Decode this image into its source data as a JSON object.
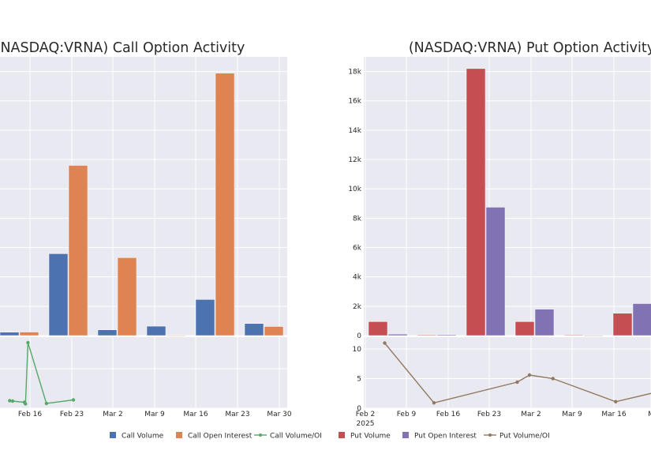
{
  "colors": {
    "panel_bg": "#e9e9f1",
    "grid": "#ffffff",
    "call_volume": "#4c72b0",
    "call_open_interest": "#dd8452",
    "call_ratio": "#55a868",
    "put_volume": "#c44e52",
    "put_open_interest": "#8172b3",
    "put_ratio": "#937860"
  },
  "legend": [
    {
      "label": "Call Volume",
      "kind": "box",
      "color_key": "call_volume"
    },
    {
      "label": "Call Open Interest",
      "kind": "box",
      "color_key": "call_open_interest"
    },
    {
      "label": "Call Volume/OI",
      "kind": "line",
      "color_key": "call_ratio"
    },
    {
      "label": "Put Volume",
      "kind": "box",
      "color_key": "put_volume"
    },
    {
      "label": "Put Open Interest",
      "kind": "box",
      "color_key": "put_open_interest"
    },
    {
      "label": "Put Volume/OI",
      "kind": "line",
      "color_key": "put_ratio"
    }
  ],
  "chart_data": [
    {
      "type": "bar",
      "id": "call",
      "title": "(NASDAQ:VRNA) Call Option Activity",
      "x_ticks": [
        "Feb 16",
        "Feb 23",
        "Mar 2",
        "Mar 9",
        "Mar 16",
        "Mar 23",
        "Mar 30"
      ],
      "x_ticks_sub": [],
      "y_ticks": [],
      "ratio_y_ticks": [],
      "series": [
        {
          "name": "Call Volume",
          "color_key": "call_volume",
          "values": [
            230,
            5580,
            390,
            640,
            2460,
            820
          ]
        },
        {
          "name": "Call Open Interest",
          "color_key": "call_open_interest",
          "values": [
            240,
            11600,
            5310,
            0,
            17890,
            620
          ]
        }
      ],
      "ratio": {
        "name": "Call Volume/OI",
        "color_key": "call_ratio",
        "points": [
          [
            -0.37,
            0.95
          ],
          [
            0.13,
            0.9
          ],
          [
            2.15,
            0.75
          ],
          [
            2.33,
            0.55
          ],
          [
            2.75,
            8.3
          ],
          [
            5.9,
            0.6
          ],
          [
            10.5,
            1.05
          ]
        ]
      }
    },
    {
      "type": "bar",
      "id": "put",
      "title": "(NASDAQ:VRNA) Put Option Activity",
      "x_ticks": [
        "Feb 2",
        "Feb 9",
        "Feb 16",
        "Feb 23",
        "Mar 2",
        "Mar 9",
        "Mar 16",
        "M"
      ],
      "x_ticks_sub": [
        "2025"
      ],
      "y_ticks": [
        "0",
        "2k",
        "4k",
        "6k",
        "8k",
        "10k",
        "12k",
        "14k",
        "16k",
        "18k"
      ],
      "ratio_y_ticks": [
        "0",
        "5",
        "10"
      ],
      "series": [
        {
          "name": "Put Volume",
          "color_key": "put_volume",
          "values": [
            950,
            50,
            18200,
            950,
            30,
            1520
          ]
        },
        {
          "name": "Put Open Interest",
          "color_key": "put_open_interest",
          "values": [
            100,
            60,
            8750,
            1800,
            0,
            2180
          ]
        }
      ],
      "ratio": {
        "name": "Put Volume/OI",
        "color_key": "put_ratio",
        "points": [
          [
            3.3,
            11
          ],
          [
            11.7,
            0.9
          ],
          [
            25.9,
            4.4
          ],
          [
            28.0,
            5.6
          ],
          [
            32.0,
            5.0
          ],
          [
            42.7,
            1.1
          ],
          [
            50.0,
            2.8
          ]
        ]
      }
    }
  ]
}
